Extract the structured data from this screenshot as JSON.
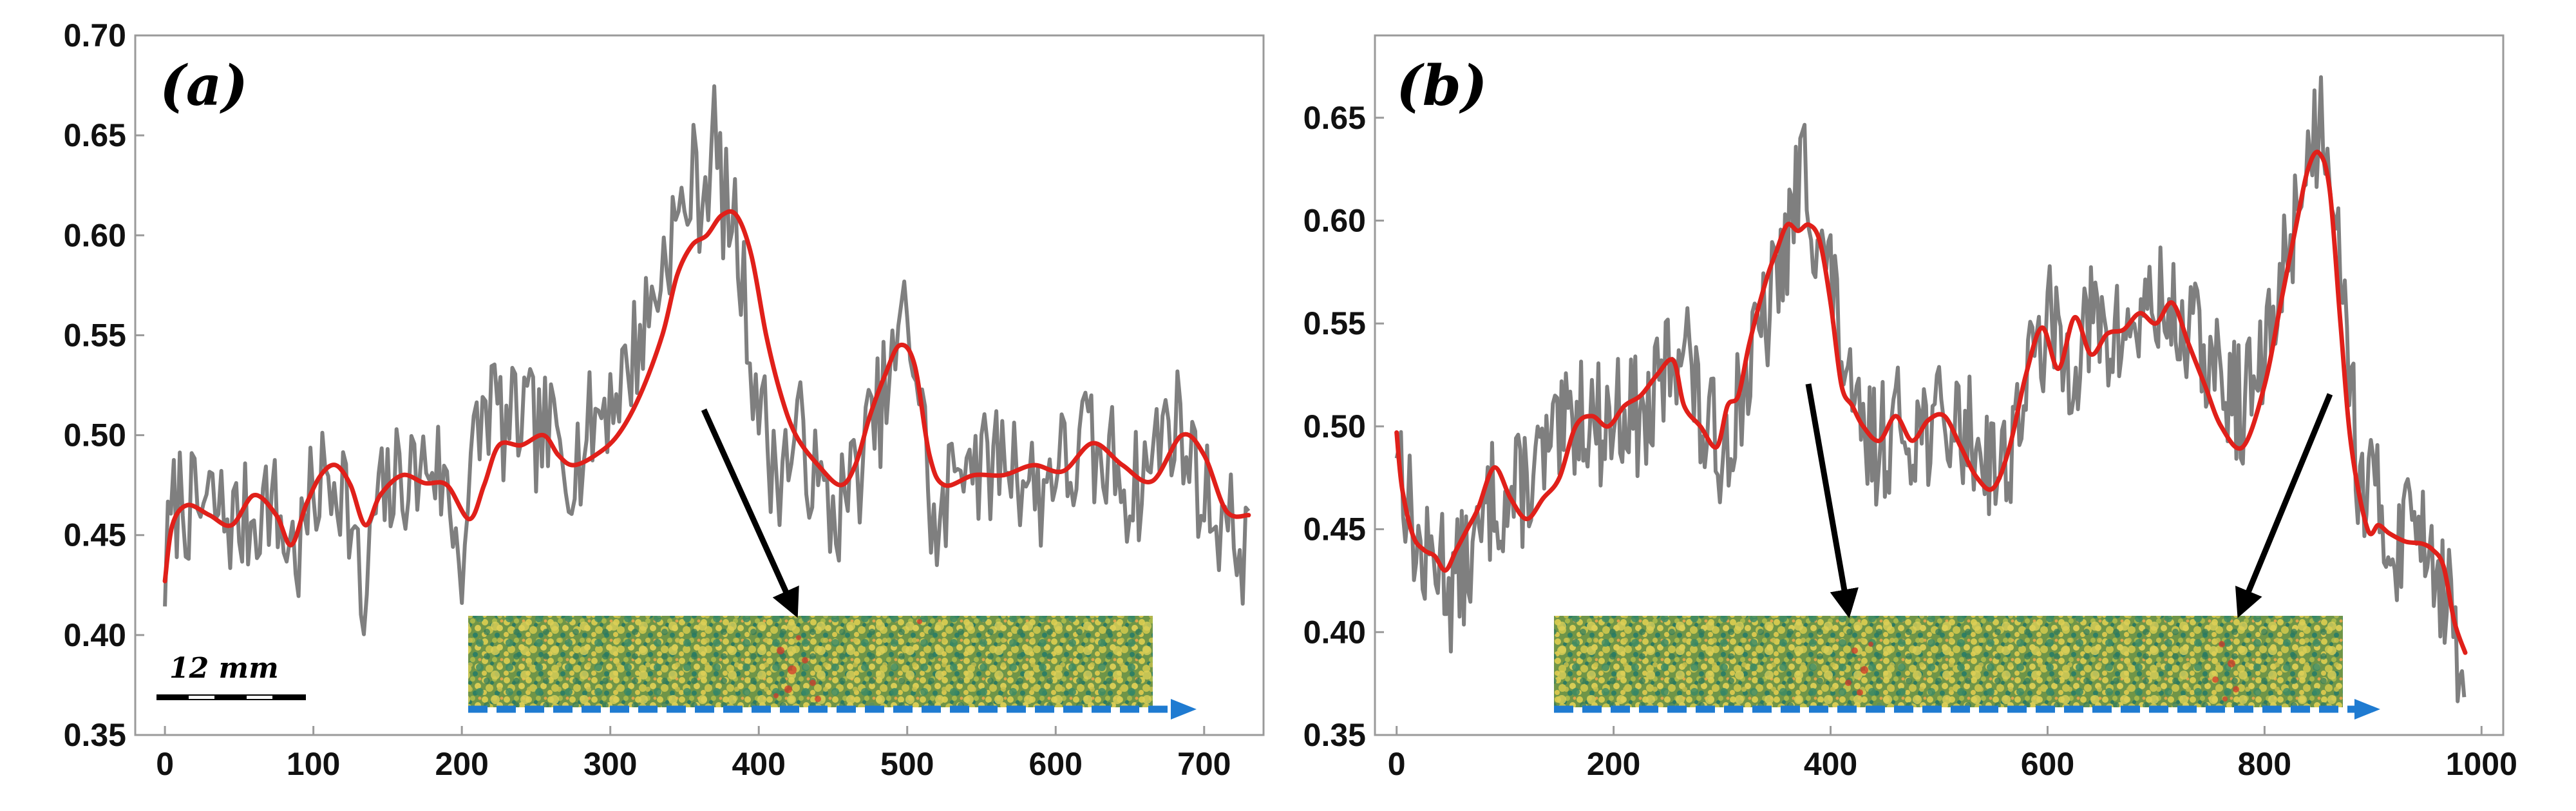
{
  "chart_data": [
    {
      "type": "line",
      "panel_label": "(a)",
      "xlim": [
        -20,
        740
      ],
      "ylim": [
        0.35,
        0.7
      ],
      "xticks": [
        0,
        100,
        200,
        300,
        400,
        500,
        600,
        700
      ],
      "yticks": [
        0.35,
        0.4,
        0.45,
        0.5,
        0.55,
        0.6,
        0.65,
        0.7
      ],
      "xtick_labels": [
        "0",
        "100",
        "200",
        "300",
        "400",
        "500",
        "600",
        "700"
      ],
      "ytick_labels": [
        "0.35",
        "0.40",
        "0.45",
        "0.50",
        "0.55",
        "0.60",
        "0.65",
        "0.70"
      ],
      "xlabel": "",
      "ylabel": "",
      "scale_bar_label": "12 mm",
      "series": [
        {
          "name": "raw",
          "color": "#7f7f7f",
          "anchors_x": [
            0,
            5,
            10,
            20,
            30,
            40,
            50,
            60,
            70,
            80,
            90,
            100,
            110,
            120,
            130,
            135,
            140,
            150,
            160,
            170,
            180,
            190,
            200,
            210,
            215,
            220,
            230,
            240,
            250,
            260,
            270,
            280,
            290,
            300,
            310,
            320,
            330,
            340,
            350,
            355,
            360,
            365,
            370,
            375,
            380,
            385,
            390,
            395,
            400,
            410,
            420,
            430,
            440,
            450,
            460,
            470,
            480,
            490,
            495,
            500,
            505,
            510,
            515,
            520,
            530,
            540,
            550,
            560,
            570,
            580,
            590,
            600,
            610,
            620,
            630,
            640,
            650,
            660,
            670,
            680,
            690,
            700,
            710,
            720,
            730
          ],
          "anchors_y": [
            0.43,
            0.46,
            0.47,
            0.46,
            0.465,
            0.46,
            0.455,
            0.46,
            0.47,
            0.45,
            0.44,
            0.47,
            0.48,
            0.48,
            0.43,
            0.4,
            0.46,
            0.47,
            0.48,
            0.48,
            0.49,
            0.47,
            0.44,
            0.5,
            0.51,
            0.52,
            0.5,
            0.51,
            0.5,
            0.5,
            0.49,
            0.49,
            0.51,
            0.52,
            0.53,
            0.55,
            0.57,
            0.6,
            0.61,
            0.63,
            0.62,
            0.63,
            0.65,
            0.62,
            0.61,
            0.6,
            0.57,
            0.54,
            0.52,
            0.48,
            0.49,
            0.5,
            0.47,
            0.46,
            0.47,
            0.49,
            0.51,
            0.53,
            0.55,
            0.56,
            0.54,
            0.51,
            0.47,
            0.44,
            0.48,
            0.5,
            0.48,
            0.49,
            0.49,
            0.48,
            0.47,
            0.49,
            0.48,
            0.5,
            0.48,
            0.49,
            0.47,
            0.48,
            0.5,
            0.51,
            0.49,
            0.47,
            0.46,
            0.45,
            0.44
          ],
          "noise_amplitude": 0.03,
          "seed": 7
        },
        {
          "name": "smoothed",
          "color": "#e0201a",
          "x": [
            0,
            5,
            15,
            30,
            45,
            60,
            75,
            85,
            95,
            105,
            115,
            125,
            135,
            145,
            160,
            175,
            190,
            205,
            215,
            225,
            240,
            255,
            265,
            275,
            290,
            305,
            320,
            335,
            345,
            355,
            365,
            375,
            385,
            395,
            405,
            415,
            425,
            440,
            455,
            465,
            475,
            485,
            495,
            505,
            515,
            525,
            545,
            565,
            585,
            605,
            625,
            645,
            665,
            685,
            700,
            715,
            730
          ],
          "y": [
            0.427,
            0.455,
            0.465,
            0.46,
            0.455,
            0.47,
            0.46,
            0.445,
            0.465,
            0.48,
            0.485,
            0.475,
            0.455,
            0.47,
            0.48,
            0.476,
            0.475,
            0.458,
            0.475,
            0.495,
            0.495,
            0.5,
            0.49,
            0.485,
            0.49,
            0.5,
            0.52,
            0.55,
            0.58,
            0.595,
            0.6,
            0.61,
            0.61,
            0.59,
            0.55,
            0.52,
            0.5,
            0.485,
            0.475,
            0.485,
            0.51,
            0.53,
            0.545,
            0.535,
            0.49,
            0.475,
            0.48,
            0.48,
            0.485,
            0.482,
            0.496,
            0.485,
            0.477,
            0.5,
            0.49,
            0.462,
            0.46
          ]
        }
      ]
    },
    {
      "type": "line",
      "panel_label": "(b)",
      "xlim": [
        -20,
        1020
      ],
      "ylim": [
        0.35,
        0.69
      ],
      "xticks": [
        0,
        200,
        400,
        600,
        800,
        1000
      ],
      "yticks": [
        0.35,
        0.4,
        0.45,
        0.5,
        0.55,
        0.6,
        0.65
      ],
      "xtick_labels": [
        "0",
        "200",
        "400",
        "600",
        "800",
        "1000"
      ],
      "ytick_labels": [
        "0.35",
        "0.40",
        "0.45",
        "0.50",
        "0.55",
        "0.60",
        "0.65"
      ],
      "xlabel": "",
      "ylabel": "",
      "series": [
        {
          "name": "raw",
          "color": "#7f7f7f",
          "anchors_x": [
            0,
            5,
            15,
            25,
            40,
            50,
            60,
            75,
            90,
            100,
            115,
            130,
            150,
            170,
            190,
            210,
            230,
            250,
            265,
            280,
            300,
            320,
            340,
            355,
            365,
            375,
            385,
            395,
            405,
            420,
            440,
            460,
            480,
            500,
            520,
            540,
            560,
            580,
            600,
            620,
            640,
            660,
            680,
            700,
            720,
            740,
            760,
            780,
            800,
            815,
            830,
            845,
            855,
            865,
            875,
            885,
            895,
            905,
            920,
            935,
            950,
            965,
            980,
            985
          ],
          "anchors_y": [
            0.5,
            0.48,
            0.45,
            0.43,
            0.44,
            0.42,
            0.43,
            0.44,
            0.47,
            0.46,
            0.47,
            0.48,
            0.49,
            0.51,
            0.5,
            0.51,
            0.5,
            0.53,
            0.55,
            0.5,
            0.49,
            0.52,
            0.55,
            0.58,
            0.6,
            0.63,
            0.6,
            0.58,
            0.56,
            0.5,
            0.49,
            0.5,
            0.5,
            0.5,
            0.5,
            0.49,
            0.48,
            0.52,
            0.55,
            0.53,
            0.55,
            0.54,
            0.55,
            0.56,
            0.55,
            0.54,
            0.52,
            0.51,
            0.53,
            0.57,
            0.61,
            0.64,
            0.65,
            0.62,
            0.56,
            0.48,
            0.47,
            0.46,
            0.44,
            0.46,
            0.45,
            0.42,
            0.39,
            0.36
          ],
          "noise_amplitude": 0.03,
          "seed": 13
        },
        {
          "name": "smoothed",
          "color": "#e0201a",
          "x": [
            0,
            5,
            15,
            25,
            35,
            45,
            55,
            65,
            75,
            90,
            105,
            120,
            135,
            150,
            165,
            180,
            195,
            210,
            225,
            240,
            255,
            265,
            280,
            295,
            305,
            315,
            325,
            340,
            350,
            360,
            370,
            380,
            390,
            400,
            410,
            420,
            430,
            445,
            460,
            475,
            490,
            505,
            520,
            535,
            550,
            565,
            580,
            595,
            610,
            625,
            640,
            655,
            670,
            685,
            700,
            715,
            730,
            745,
            760,
            780,
            800,
            815,
            830,
            840,
            850,
            860,
            870,
            880,
            895,
            905,
            915,
            930,
            945,
            955,
            965,
            975,
            985
          ],
          "y": [
            0.497,
            0.47,
            0.447,
            0.44,
            0.437,
            0.43,
            0.44,
            0.45,
            0.46,
            0.48,
            0.465,
            0.455,
            0.465,
            0.475,
            0.5,
            0.505,
            0.5,
            0.51,
            0.515,
            0.525,
            0.532,
            0.51,
            0.5,
            0.49,
            0.51,
            0.515,
            0.54,
            0.57,
            0.585,
            0.598,
            0.595,
            0.598,
            0.59,
            0.56,
            0.52,
            0.51,
            0.5,
            0.493,
            0.505,
            0.493,
            0.503,
            0.505,
            0.49,
            0.475,
            0.47,
            0.49,
            0.525,
            0.548,
            0.528,
            0.553,
            0.535,
            0.545,
            0.547,
            0.555,
            0.55,
            0.56,
            0.54,
            0.52,
            0.5,
            0.49,
            0.52,
            0.56,
            0.6,
            0.625,
            0.633,
            0.615,
            0.55,
            0.49,
            0.45,
            0.452,
            0.448,
            0.444,
            0.443,
            0.44,
            0.432,
            0.405,
            0.39
          ]
        }
      ]
    }
  ]
}
